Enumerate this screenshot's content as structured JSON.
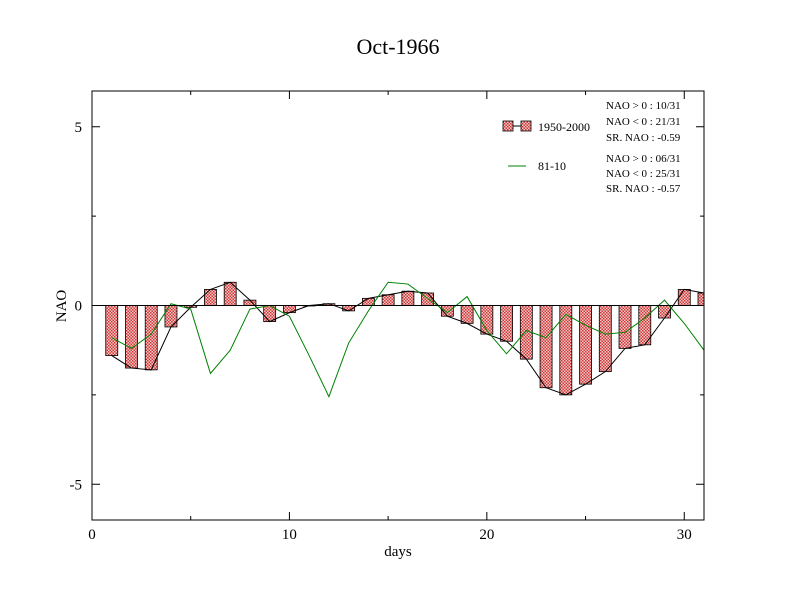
{
  "chart_data": {
    "type": "bar",
    "title": "Oct-1966",
    "xlabel": "days",
    "ylabel": "NAO",
    "xlim": [
      0,
      31
    ],
    "ylim": [
      -6,
      6
    ],
    "x_ticks": [
      0,
      10,
      20,
      30
    ],
    "y_ticks": [
      -5,
      0,
      5
    ],
    "x_tick_labels": [
      "0",
      "10",
      "20",
      "30"
    ],
    "y_tick_labels": [
      "-5",
      "0",
      "5"
    ],
    "grid": false,
    "legend_position": "top-right",
    "x": [
      1,
      2,
      3,
      4,
      5,
      6,
      7,
      8,
      9,
      10,
      11,
      12,
      13,
      14,
      15,
      16,
      17,
      18,
      19,
      20,
      21,
      22,
      23,
      24,
      25,
      26,
      27,
      28,
      29,
      30,
      31
    ],
    "series": [
      {
        "name": "1950-2000",
        "type": "bar",
        "color": "#e07070",
        "values": [
          -1.4,
          -1.75,
          -1.8,
          -0.6,
          -0.05,
          0.45,
          0.65,
          0.15,
          -0.45,
          -0.2,
          0.0,
          0.05,
          -0.15,
          0.2,
          0.3,
          0.4,
          0.35,
          -0.3,
          -0.5,
          -0.8,
          -1.0,
          -1.5,
          -2.3,
          -2.5,
          -2.2,
          -1.85,
          -1.2,
          -1.1,
          -0.35,
          0.45,
          0.35
        ]
      },
      {
        "name": "81-10",
        "type": "line",
        "color": "#008000",
        "values": [
          -0.9,
          -1.2,
          -0.8,
          0.05,
          -0.1,
          -1.9,
          -1.25,
          -0.1,
          0.0,
          -0.3,
          -1.4,
          -2.55,
          -1.05,
          -0.15,
          0.65,
          0.6,
          0.2,
          -0.2,
          0.25,
          -0.7,
          -1.35,
          -0.7,
          -0.9,
          -0.25,
          -0.55,
          -0.8,
          -0.75,
          -0.35,
          0.15,
          -0.5,
          -1.25
        ]
      }
    ],
    "stats": [
      [
        "NAO > 0 : 10/31",
        "NAO < 0 : 21/31",
        "SR. NAO : -0.59"
      ],
      [
        "NAO > 0 : 06/31",
        "NAO < 0 : 25/31",
        "SR. NAO : -0.57"
      ]
    ]
  }
}
